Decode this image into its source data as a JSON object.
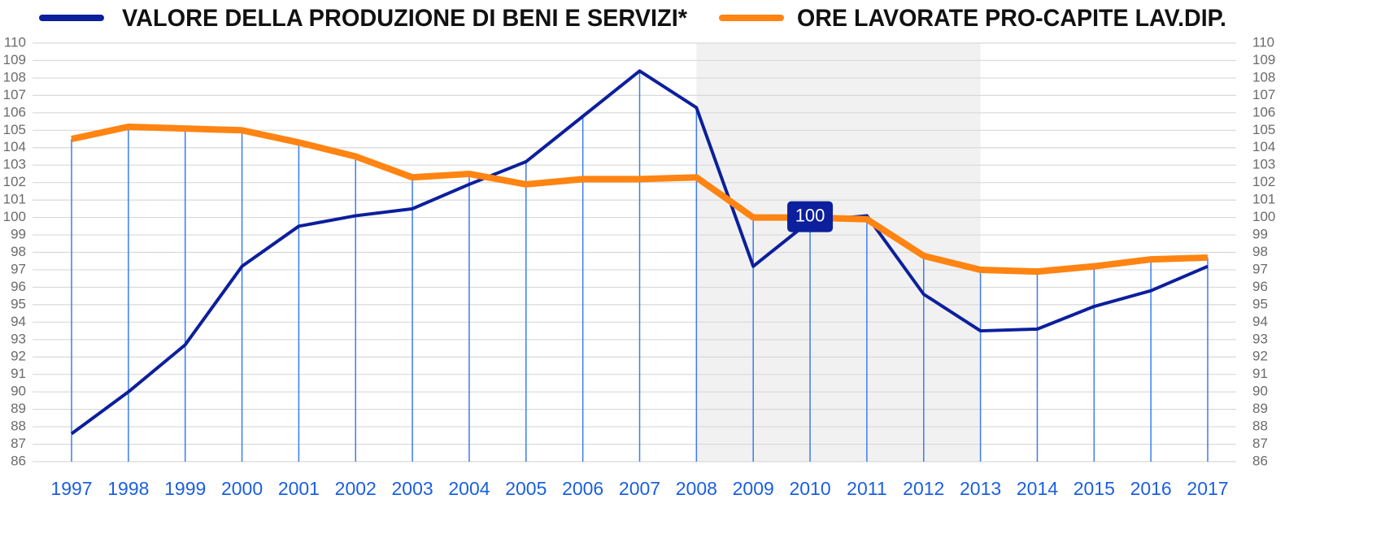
{
  "chart_data": {
    "type": "line",
    "categories": [
      "1997",
      "1998",
      "1999",
      "2000",
      "2001",
      "2002",
      "2003",
      "2004",
      "2005",
      "2006",
      "2007",
      "2008",
      "2009",
      "2010",
      "2011",
      "2012",
      "2013",
      "2014",
      "2015",
      "2016",
      "2017"
    ],
    "series": [
      {
        "name": "VALORE DELLA PRODUZIONE DI BENI E SERVIZI*",
        "color": "#0c1f9c",
        "values": [
          87.6,
          90.0,
          92.7,
          97.2,
          99.5,
          100.1,
          100.5,
          101.9,
          103.2,
          105.8,
          108.4,
          106.3,
          97.2,
          99.8,
          100.1,
          95.6,
          93.5,
          93.6,
          94.9,
          95.8,
          97.2
        ]
      },
      {
        "name": "ORE LAVORATE PRO-CAPITE LAV.DIP.",
        "color": "#ff8412",
        "values": [
          104.5,
          105.2,
          105.1,
          105.0,
          104.3,
          103.5,
          102.3,
          102.5,
          101.9,
          102.2,
          102.2,
          102.3,
          100.0,
          100.0,
          99.9,
          97.8,
          97.0,
          96.9,
          97.2,
          97.6,
          97.7
        ]
      }
    ],
    "ylim": [
      86,
      110
    ],
    "yticks": [
      86,
      87,
      88,
      89,
      90,
      91,
      92,
      93,
      94,
      95,
      96,
      97,
      98,
      99,
      100,
      101,
      102,
      103,
      104,
      105,
      106,
      107,
      108,
      109,
      110
    ],
    "y2lim": [
      86,
      110
    ],
    "y2ticks": [
      86,
      87,
      88,
      89,
      90,
      91,
      92,
      93,
      94,
      95,
      96,
      97,
      98,
      99,
      100,
      101,
      102,
      103,
      104,
      105,
      106,
      107,
      108,
      109,
      110
    ],
    "grid": true,
    "shaded_range": [
      "2008",
      "2013"
    ],
    "annotation": {
      "text": "100",
      "x": "2010",
      "y": 100,
      "color": "#0c1f9c"
    }
  }
}
